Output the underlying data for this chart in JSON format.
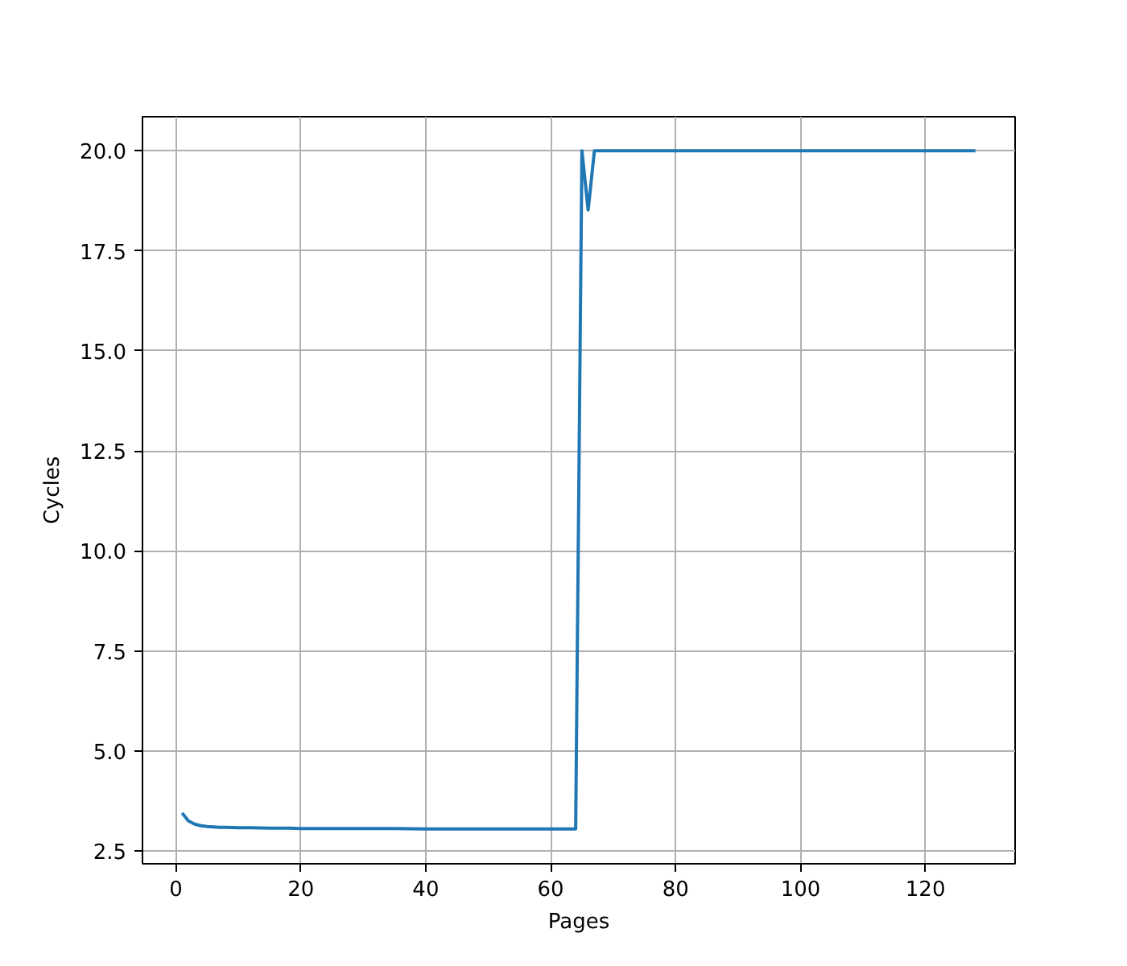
{
  "chart_data": {
    "type": "line",
    "xlabel": "Pages",
    "ylabel": "Cycles",
    "x": [
      1,
      2,
      3,
      4,
      5,
      6,
      7,
      8,
      10,
      12,
      15,
      18,
      20,
      25,
      30,
      35,
      40,
      45,
      50,
      55,
      60,
      63,
      64,
      65,
      66,
      67,
      70,
      75,
      80,
      85,
      90,
      95,
      100,
      105,
      110,
      115,
      120,
      125,
      128
    ],
    "series": [
      {
        "color": "#1f77b4",
        "values": [
          3.45,
          3.25,
          3.17,
          3.13,
          3.11,
          3.1,
          3.09,
          3.09,
          3.08,
          3.08,
          3.07,
          3.07,
          3.06,
          3.06,
          3.06,
          3.06,
          3.05,
          3.05,
          3.05,
          3.05,
          3.05,
          3.05,
          3.05,
          20.0,
          18.52,
          20.0,
          20.0,
          20.0,
          20.0,
          20.0,
          20.0,
          20.0,
          20.0,
          20.0,
          20.0,
          20.0,
          20.0,
          20.0,
          20.0
        ]
      }
    ],
    "xlim": [
      -5.35,
      134.35
    ],
    "ylim": [
      2.18,
      20.85
    ],
    "xticks": [
      0,
      20,
      40,
      60,
      80,
      100,
      120
    ],
    "yticks": [
      2.5,
      {
        "value": 5,
        "label": "5.0"
      },
      7.5,
      {
        "value": 10,
        "label": "10.0"
      },
      12.5,
      {
        "value": 15,
        "label": "15.0"
      },
      17.5,
      {
        "value": 20,
        "label": "20.0"
      }
    ],
    "grid": true
  }
}
